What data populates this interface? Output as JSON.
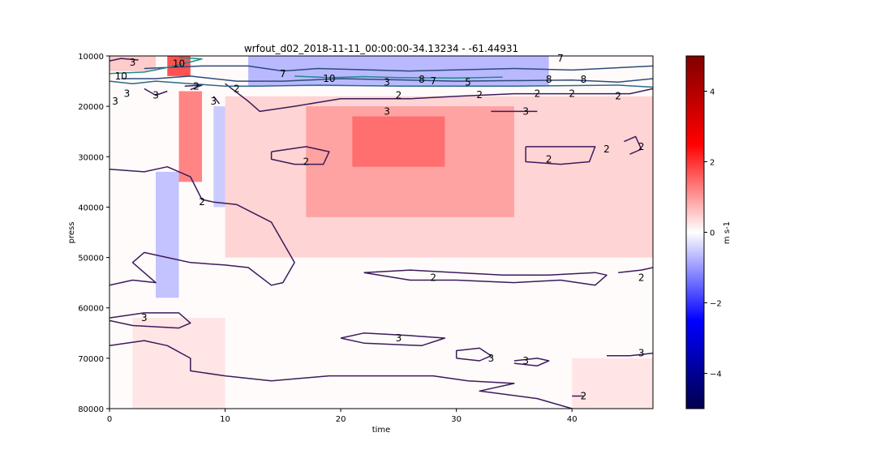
{
  "chart_data": {
    "type": "heatmap",
    "title": "wrfout_d02_2018-11-11_00:00:00-34.13234 - -61.44931",
    "xlabel": "time",
    "ylabel": "press",
    "xlim": [
      0,
      47
    ],
    "ylim": [
      80000,
      10000
    ],
    "x_ticks": [
      0,
      10,
      20,
      30,
      40
    ],
    "y_ticks": [
      10000,
      20000,
      30000,
      40000,
      50000,
      60000,
      70000,
      80000
    ],
    "y_tick_labels": [
      "10000",
      "20000",
      "30000",
      "40000",
      "50000",
      "60000",
      "70000",
      "80000"
    ],
    "colorbar": {
      "label": "m s-1",
      "colormap": "seismic",
      "range": [
        -5,
        5
      ],
      "ticks": [
        -4,
        -2,
        0,
        2,
        4
      ],
      "tick_labels": [
        "−4",
        "−2",
        "0",
        "2",
        "4"
      ],
      "low_color": "#00004c",
      "mid_color": "#ffffff",
      "high_color": "#800000"
    },
    "heatmap_regions": [
      {
        "x": [
          0,
          47
        ],
        "y": [
          10000,
          80000
        ],
        "value": 0.05
      },
      {
        "x": [
          10,
          47
        ],
        "y": [
          18000,
          50000
        ],
        "value": 0.5
      },
      {
        "x": [
          17,
          35
        ],
        "y": [
          20000,
          42000
        ],
        "value": 1.0
      },
      {
        "x": [
          21,
          29
        ],
        "y": [
          22000,
          32000
        ],
        "value": 1.5
      },
      {
        "x": [
          6,
          8
        ],
        "y": [
          17000,
          35000
        ],
        "value": 1.4
      },
      {
        "x": [
          4,
          6
        ],
        "y": [
          33000,
          58000
        ],
        "value": -0.7
      },
      {
        "x": [
          9,
          10
        ],
        "y": [
          20000,
          40000
        ],
        "value": -0.6
      },
      {
        "x": [
          12,
          38
        ],
        "y": [
          10000,
          16000
        ],
        "value": -0.8
      },
      {
        "x": [
          0,
          4
        ],
        "y": [
          10000,
          13000
        ],
        "value": 0.6
      },
      {
        "x": [
          5,
          7
        ],
        "y": [
          10000,
          14000
        ],
        "value": 2.0
      },
      {
        "x": [
          40,
          47
        ],
        "y": [
          70000,
          80000
        ],
        "value": 0.3
      },
      {
        "x": [
          2,
          10
        ],
        "y": [
          62000,
          80000
        ],
        "value": 0.3
      }
    ],
    "contour_lines": [
      {
        "level": 2,
        "points": [
          [
            0,
            32500
          ],
          [
            3,
            33000
          ],
          [
            5,
            32000
          ],
          [
            7,
            34000
          ],
          [
            8,
            38500
          ],
          [
            9,
            39000
          ],
          [
            11,
            39500
          ],
          [
            14,
            43000
          ],
          [
            15,
            47000
          ],
          [
            16,
            51000
          ],
          [
            15,
            55000
          ],
          [
            14,
            55500
          ],
          [
            12,
            52000
          ],
          [
            10,
            51500
          ],
          [
            7,
            51000
          ],
          [
            5,
            50000
          ],
          [
            3,
            49000
          ],
          [
            2,
            51000
          ],
          [
            4,
            55000
          ],
          [
            2,
            54500
          ],
          [
            0,
            55500
          ]
        ]
      },
      {
        "level": 2,
        "points": [
          [
            10,
            15500
          ],
          [
            12,
            19000
          ],
          [
            13,
            21000
          ],
          [
            16,
            20000
          ],
          [
            20,
            18500
          ],
          [
            26,
            18500
          ],
          [
            30,
            18000
          ],
          [
            35,
            17500
          ],
          [
            40,
            17500
          ],
          [
            45,
            17500
          ],
          [
            47,
            16500
          ]
        ]
      },
      {
        "level": 2,
        "points": [
          [
            14,
            29000
          ],
          [
            17,
            28000
          ],
          [
            19,
            29000
          ],
          [
            18.5,
            31500
          ],
          [
            16,
            31500
          ],
          [
            14,
            30500
          ],
          [
            14,
            29000
          ]
        ]
      },
      {
        "level": 2,
        "points": [
          [
            36,
            28000
          ],
          [
            40,
            28000
          ],
          [
            42,
            28000
          ],
          [
            41.5,
            31000
          ],
          [
            39,
            31500
          ],
          [
            36,
            31000
          ],
          [
            36,
            28000
          ]
        ]
      },
      {
        "level": 2,
        "points": [
          [
            44.5,
            27000
          ],
          [
            45.5,
            26000
          ],
          [
            46,
            28500
          ],
          [
            45,
            29500
          ]
        ]
      },
      {
        "level": 2,
        "points": [
          [
            22,
            53000
          ],
          [
            26,
            52500
          ],
          [
            30,
            53000
          ],
          [
            34,
            53500
          ],
          [
            38,
            53500
          ],
          [
            42,
            53000
          ],
          [
            43,
            53500
          ],
          [
            42,
            55500
          ],
          [
            39,
            54500
          ],
          [
            35,
            55000
          ],
          [
            30,
            54500
          ],
          [
            26,
            54500
          ],
          [
            22,
            53000
          ]
        ]
      },
      {
        "level": 2,
        "points": [
          [
            44,
            53000
          ],
          [
            46,
            52500
          ],
          [
            47,
            52000
          ]
        ]
      },
      {
        "level": 2,
        "points": [
          [
            40,
            77500
          ],
          [
            41,
            77500
          ]
        ]
      },
      {
        "level": 3,
        "points": [
          [
            0,
            62000
          ],
          [
            3,
            61000
          ],
          [
            6,
            61000
          ],
          [
            7,
            63000
          ],
          [
            6,
            64000
          ],
          [
            2,
            63500
          ],
          [
            0,
            62500
          ]
        ]
      },
      {
        "level": 3,
        "points": [
          [
            0,
            67500
          ],
          [
            3,
            66500
          ],
          [
            5,
            67500
          ],
          [
            7,
            70000
          ],
          [
            7,
            72500
          ],
          [
            10,
            73500
          ],
          [
            14,
            74500
          ],
          [
            19,
            73500
          ],
          [
            23,
            73500
          ],
          [
            28,
            73500
          ],
          [
            31,
            74500
          ],
          [
            35,
            75000
          ],
          [
            32,
            76500
          ],
          [
            37,
            78000
          ],
          [
            40,
            80000
          ]
        ]
      },
      {
        "level": 3,
        "points": [
          [
            20,
            66000
          ],
          [
            22,
            65000
          ],
          [
            26,
            65500
          ],
          [
            29,
            66000
          ],
          [
            27,
            67500
          ],
          [
            22,
            67000
          ],
          [
            20,
            66000
          ]
        ]
      },
      {
        "level": 3,
        "points": [
          [
            30,
            70000
          ],
          [
            32,
            70500
          ],
          [
            33,
            69500
          ],
          [
            32,
            68000
          ],
          [
            30,
            68500
          ],
          [
            30,
            70000
          ]
        ]
      },
      {
        "level": 3,
        "points": [
          [
            35,
            70500
          ],
          [
            37,
            70000
          ],
          [
            38,
            70500
          ],
          [
            37,
            71500
          ],
          [
            35,
            71000
          ]
        ]
      },
      {
        "level": 3,
        "points": [
          [
            43,
            69500
          ],
          [
            45,
            69500
          ],
          [
            47,
            69000
          ]
        ]
      },
      {
        "level": 3,
        "points": [
          [
            33,
            21000
          ],
          [
            35,
            21000
          ],
          [
            37,
            21000
          ]
        ]
      },
      {
        "level": 7,
        "points": [
          [
            3,
            12500
          ],
          [
            8,
            12000
          ],
          [
            12,
            12000
          ],
          [
            15,
            13000
          ],
          [
            18,
            12500
          ],
          [
            26,
            13000
          ],
          [
            35,
            12500
          ],
          [
            40,
            12800
          ],
          [
            47,
            12000
          ]
        ]
      },
      {
        "level": 7,
        "points": [
          [
            1,
            14500
          ],
          [
            4,
            14500
          ],
          [
            7,
            14000
          ],
          [
            9,
            14500
          ],
          [
            11,
            15000
          ],
          [
            15,
            15000
          ],
          [
            20,
            14500
          ],
          [
            30,
            15000
          ],
          [
            40,
            14800
          ],
          [
            44,
            15200
          ],
          [
            47,
            14500
          ]
        ]
      },
      {
        "level": 8,
        "points": [
          [
            0,
            15000
          ],
          [
            2,
            15500
          ],
          [
            4,
            15000
          ],
          [
            7,
            15500
          ],
          [
            10,
            16000
          ],
          [
            13,
            16000
          ],
          [
            18,
            15800
          ],
          [
            25,
            16000
          ],
          [
            35,
            16000
          ],
          [
            44,
            15800
          ],
          [
            47,
            16200
          ]
        ]
      },
      {
        "level": 10,
        "points": [
          [
            16,
            14000
          ],
          [
            19,
            14300
          ],
          [
            22,
            14100
          ],
          [
            25,
            14300
          ],
          [
            30,
            14400
          ],
          [
            34,
            14200
          ]
        ]
      },
      {
        "level": 10,
        "points": [
          [
            0,
            13500
          ],
          [
            3,
            13200
          ],
          [
            5,
            12300
          ],
          [
            7,
            11200
          ],
          [
            8,
            10600
          ],
          [
            6,
            10300
          ]
        ]
      },
      {
        "level": 3,
        "points": [
          [
            3,
            16500
          ],
          [
            4,
            17800
          ],
          [
            5,
            17000
          ]
        ]
      },
      {
        "level": 3,
        "points": [
          [
            9,
            18000
          ],
          [
            9.5,
            19500
          ]
        ]
      },
      {
        "level": 2,
        "points": [
          [
            6.5,
            16000
          ],
          [
            8,
            15800
          ],
          [
            7,
            16700
          ]
        ]
      },
      {
        "level": 3,
        "points": [
          [
            0,
            11000
          ],
          [
            1,
            10500
          ],
          [
            2.5,
            10800
          ]
        ]
      }
    ],
    "contour_colors": {
      "2": "#3d1a5a",
      "3": "#3d1a5a",
      "5": "#2a4a8a",
      "7": "#2e4a7a",
      "8": "#2a6a8a",
      "10": "#1e8a8a"
    },
    "contour_labels": [
      {
        "text": "10",
        "x": 1,
        "y": 14000
      },
      {
        "text": "10",
        "x": 6,
        "y": 11500
      },
      {
        "text": "3",
        "x": 2,
        "y": 11300
      },
      {
        "text": "7",
        "x": 15,
        "y": 13500
      },
      {
        "text": "10",
        "x": 19,
        "y": 14500
      },
      {
        "text": "3",
        "x": 24,
        "y": 15200
      },
      {
        "text": "8",
        "x": 27,
        "y": 14700
      },
      {
        "text": "7",
        "x": 28,
        "y": 15000
      },
      {
        "text": "5",
        "x": 31,
        "y": 15200
      },
      {
        "text": "8",
        "x": 38,
        "y": 14700
      },
      {
        "text": "8",
        "x": 41,
        "y": 14700
      },
      {
        "text": "7",
        "x": 39,
        "y": 10500
      },
      {
        "text": "2",
        "x": 11,
        "y": 16500
      },
      {
        "text": "2",
        "x": 25,
        "y": 17800
      },
      {
        "text": "2",
        "x": 32,
        "y": 17700
      },
      {
        "text": "2",
        "x": 37,
        "y": 17500
      },
      {
        "text": "2",
        "x": 40,
        "y": 17500
      },
      {
        "text": "2",
        "x": 44,
        "y": 18000
      },
      {
        "text": "2",
        "x": 7.5,
        "y": 16000
      },
      {
        "text": "3",
        "x": 0.5,
        "y": 19000
      },
      {
        "text": "3",
        "x": 1.5,
        "y": 17500
      },
      {
        "text": "3",
        "x": 4,
        "y": 17800
      },
      {
        "text": "3",
        "x": 9,
        "y": 19000
      },
      {
        "text": "3",
        "x": 24,
        "y": 21000
      },
      {
        "text": "3",
        "x": 36,
        "y": 21000
      },
      {
        "text": "2",
        "x": 17,
        "y": 31000
      },
      {
        "text": "2",
        "x": 38,
        "y": 30500
      },
      {
        "text": "2",
        "x": 43,
        "y": 28500
      },
      {
        "text": "2",
        "x": 46,
        "y": 28000
      },
      {
        "text": "2",
        "x": 8,
        "y": 39000
      },
      {
        "text": "2",
        "x": 28,
        "y": 54000
      },
      {
        "text": "2",
        "x": 46,
        "y": 54000
      },
      {
        "text": "3",
        "x": 3,
        "y": 62000
      },
      {
        "text": "3",
        "x": 25,
        "y": 66000
      },
      {
        "text": "3",
        "x": 33,
        "y": 70000
      },
      {
        "text": "3",
        "x": 36,
        "y": 70500
      },
      {
        "text": "3",
        "x": 46,
        "y": 69000
      },
      {
        "text": "2",
        "x": 41,
        "y": 77500
      }
    ]
  }
}
